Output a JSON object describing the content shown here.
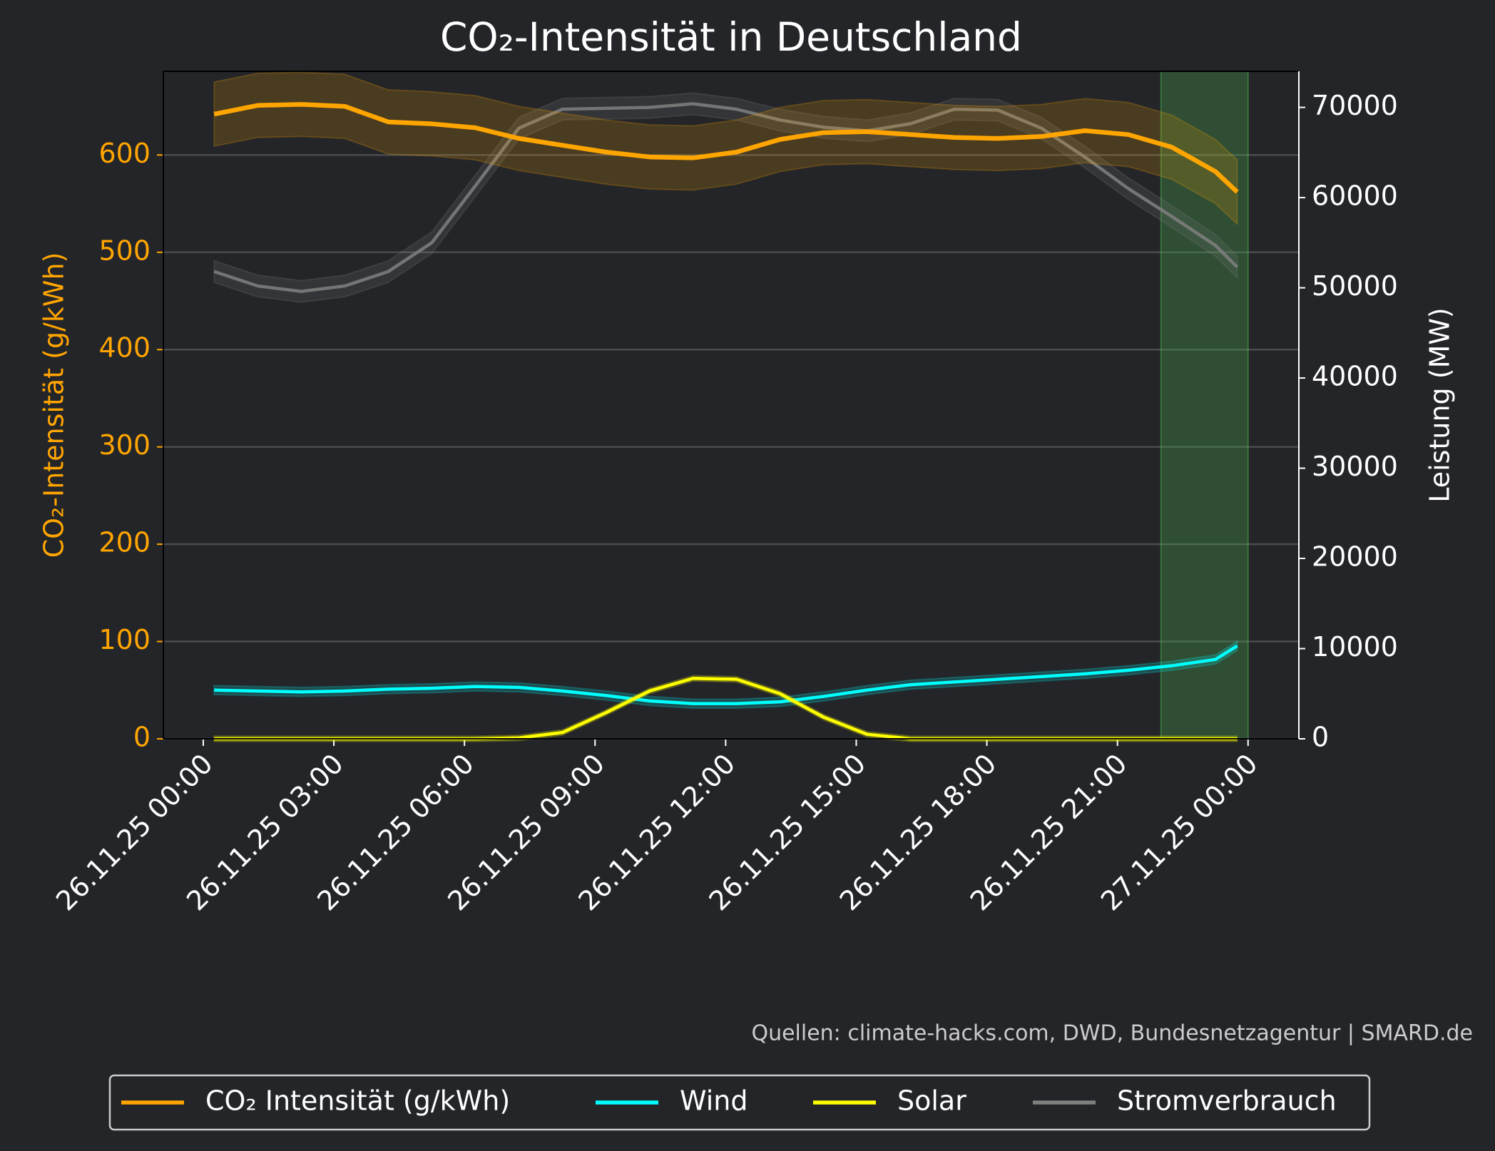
{
  "chart_data": {
    "type": "line",
    "title": "CO₂-Intensität in Deutschland",
    "y_label": "CO₂-Intensität (g/kWh)",
    "y2_label": "Leistung (MW)",
    "source": "Quellen: climate-hacks.com, DWD, Bundesnetzagentur | SMARD.de",
    "x": [
      "26.11.25 00:15",
      "26.11.25 01:15",
      "26.11.25 02:15",
      "26.11.25 03:15",
      "26.11.25 04:15",
      "26.11.25 05:15",
      "26.11.25 06:15",
      "26.11.25 07:15",
      "26.11.25 08:15",
      "26.11.25 09:15",
      "26.11.25 10:15",
      "26.11.25 11:15",
      "26.11.25 12:15",
      "26.11.25 13:15",
      "26.11.25 14:15",
      "26.11.25 15:15",
      "26.11.25 16:15",
      "26.11.25 17:15",
      "26.11.25 18:15",
      "26.11.25 19:15",
      "26.11.25 20:15",
      "26.11.25 21:15",
      "26.11.25 22:15",
      "26.11.25 23:15",
      "26.11.25 23:45"
    ],
    "xlim": [
      "25.11.25 23:05",
      "27.11.25 01:10"
    ],
    "xticks": [
      "26.11.25 00:00",
      "26.11.25 03:00",
      "26.11.25 06:00",
      "26.11.25 09:00",
      "26.11.25 12:00",
      "26.11.25 15:00",
      "26.11.25 18:00",
      "26.11.25 21:00",
      "27.11.25 00:00"
    ],
    "ylim": [
      0,
      686
    ],
    "yticks": [
      0,
      100,
      200,
      300,
      400,
      500,
      600
    ],
    "y2lim": [
      0,
      74000
    ],
    "y2ticks": [
      0,
      10000,
      20000,
      30000,
      40000,
      50000,
      60000,
      70000
    ],
    "grid": true,
    "highlight": [
      "26.11.25 22:00",
      "27.11.25 00:00"
    ],
    "highlight_color": "#4caf50",
    "series": [
      {
        "name": "CO₂ Intensität (g/kWh)",
        "color": "#ffa500",
        "uncertainty": 33,
        "values": [
          642,
          651,
          652,
          650,
          634,
          632,
          628,
          617,
          610,
          603,
          598,
          597,
          603,
          616,
          623,
          624,
          621,
          618,
          617,
          619,
          625,
          621,
          608,
          583,
          562
        ]
      },
      {
        "name": "Wind",
        "color": "#00ffff",
        "axis": "y2",
        "uncertainty": 500,
        "values": [
          5400,
          5300,
          5200,
          5300,
          5500,
          5600,
          5800,
          5700,
          5300,
          4800,
          4200,
          3900,
          3900,
          4100,
          4700,
          5400,
          6000,
          6300,
          6600,
          6900,
          7200,
          7600,
          8100,
          8800,
          10300
        ]
      },
      {
        "name": "Solar",
        "color": "#ffff00",
        "axis": "y2",
        "uncertainty": 300,
        "values": [
          0,
          0,
          0,
          0,
          0,
          0,
          0,
          100,
          700,
          2900,
          5300,
          6700,
          6600,
          5000,
          2400,
          500,
          0,
          0,
          0,
          0,
          0,
          0,
          0,
          0,
          0
        ]
      },
      {
        "name": "Stromverbrauch",
        "color": "#808080",
        "axis": "y2",
        "uncertainty": 1200,
        "values": [
          51800,
          50200,
          49600,
          50200,
          51800,
          55000,
          61300,
          67700,
          69800,
          69900,
          70000,
          70400,
          69800,
          68600,
          67800,
          67400,
          68200,
          69800,
          69700,
          67700,
          64500,
          61000,
          57900,
          54700,
          52300
        ]
      }
    ]
  }
}
